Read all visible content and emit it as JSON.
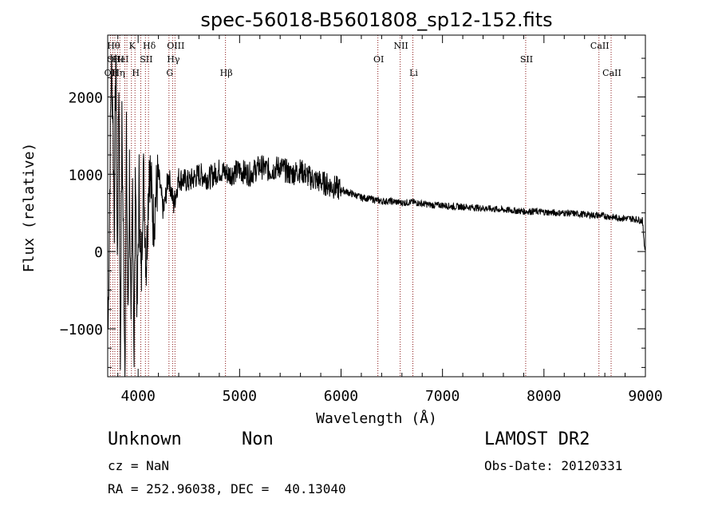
{
  "chart_data": {
    "type": "line",
    "title": "spec-56018-B5601808_sp12-152.fits",
    "xlabel": "Wavelength (Å)",
    "ylabel": "Flux (relative)",
    "xlim": [
      3700,
      9000
    ],
    "ylim": [
      -1620,
      2800
    ],
    "xticks": [
      4000,
      5000,
      6000,
      7000,
      8000,
      9000
    ],
    "xtick_labels": [
      "4000",
      "5000",
      "6000",
      "7000",
      "8000",
      "9000"
    ],
    "yticks": [
      -1000,
      0,
      1000,
      2000
    ],
    "ytick_labels": [
      "−1000",
      "0",
      "1000",
      "2000"
    ],
    "grid": false,
    "line_color": "#000000",
    "marker_color": "#8b1a1a",
    "series": [
      {
        "x": [
          3705,
          3720,
          3735,
          3750,
          3765,
          3780,
          3795,
          3810,
          3825,
          3840,
          3855,
          3870,
          3885,
          3900,
          3915,
          3930,
          3945,
          3960,
          3975,
          3990,
          4010,
          4030,
          4050,
          4080,
          4110,
          4150,
          4200,
          4250,
          4300,
          4350,
          4400,
          4500,
          4600,
          4700,
          4800,
          4900,
          5000,
          5100,
          5200,
          5300,
          5400,
          5500,
          5600,
          5700,
          5800,
          5900,
          6000,
          6100,
          6200,
          6300,
          6400,
          6500,
          6600,
          6700,
          6800,
          6900,
          7000,
          7100,
          7200,
          7300,
          7400,
          7500,
          7600,
          7700,
          7800,
          7900,
          8000,
          8100,
          8200,
          8300,
          8400,
          8500,
          8600,
          8700,
          8800,
          8900,
          8970,
          8995
        ],
        "y": [
          -1000,
          800,
          2400,
          1900,
          400,
          2600,
          -200,
          2300,
          -1400,
          1600,
          200,
          -1500,
          1400,
          -1000,
          1100,
          -1300,
          900,
          -1400,
          1200,
          -900,
          900,
          -500,
          1100,
          -200,
          1200,
          400,
          1000,
          500,
          1000,
          600,
          950,
          900,
          1000,
          950,
          1050,
          1000,
          1050,
          1000,
          1100,
          1050,
          1100,
          1000,
          1050,
          950,
          900,
          850,
          800,
          750,
          700,
          680,
          650,
          650,
          630,
          640,
          620,
          600,
          600,
          580,
          580,
          570,
          560,
          550,
          540,
          530,
          520,
          520,
          510,
          500,
          500,
          490,
          480,
          470,
          460,
          440,
          430,
          420,
          400,
          20
        ]
      }
    ],
    "line_markers": [
      {
        "wl": 3727,
        "label": "OII",
        "row": 3
      },
      {
        "wl": 3750,
        "label": "Hθ",
        "row": 1
      },
      {
        "wl": 3770,
        "label": "OIII",
        "row": 2
      },
      {
        "wl": 3798,
        "label": "Hη",
        "row": 3
      },
      {
        "wl": 3820,
        "label": "HeI",
        "row": 2
      },
      {
        "wl": 3869,
        "label": "",
        "row": 0
      },
      {
        "wl": 3889,
        "label": "",
        "row": 0
      },
      {
        "wl": 3934,
        "label": "K",
        "row": 1
      },
      {
        "wl": 3969,
        "label": "H",
        "row": 3
      },
      {
        "wl": 4026,
        "label": "",
        "row": 0
      },
      {
        "wl": 4072,
        "label": "SII",
        "row": 2
      },
      {
        "wl": 4102,
        "label": "Hδ",
        "row": 1
      },
      {
        "wl": 4304,
        "label": "G",
        "row": 3
      },
      {
        "wl": 4340,
        "label": "Hγ",
        "row": 2
      },
      {
        "wl": 4363,
        "label": "OIII",
        "row": 1
      },
      {
        "wl": 4861,
        "label": "Hβ",
        "row": 3
      },
      {
        "wl": 6363,
        "label": "OI",
        "row": 2
      },
      {
        "wl": 6583,
        "label": "NII",
        "row": 1
      },
      {
        "wl": 6708,
        "label": "Li",
        "row": 3
      },
      {
        "wl": 7820,
        "label": "SII",
        "row": 2
      },
      {
        "wl": 8542,
        "label": "CaII",
        "row": 1
      },
      {
        "wl": 8662,
        "label": "CaII",
        "row": 3
      }
    ]
  },
  "info": {
    "class_label": "Unknown",
    "subclass_label": "Non",
    "survey": "LAMOST DR2",
    "cz": "cz = NaN",
    "obs_date": "Obs-Date: 20120331",
    "coords": "RA = 252.96038, DEC =  40.13040"
  }
}
